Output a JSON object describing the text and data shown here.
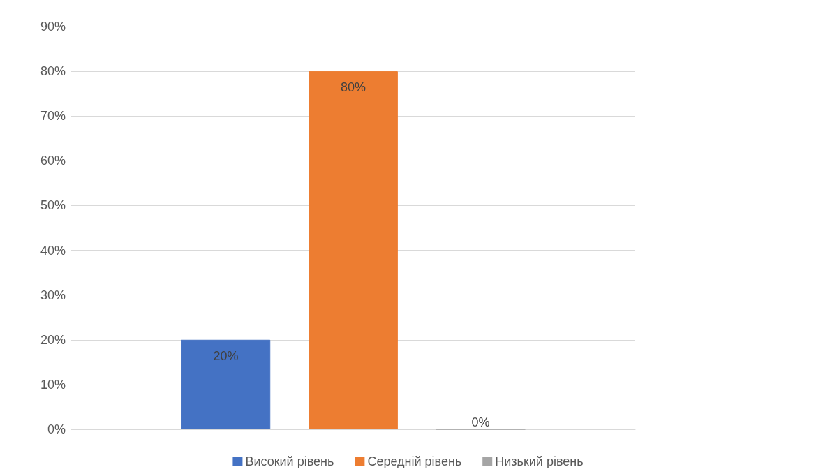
{
  "chart_data": {
    "type": "bar",
    "categories": [
      null
    ],
    "series": [
      {
        "name": "Високий рівень",
        "color": "#4472c4",
        "values": [
          20
        ],
        "value_labels": [
          "20%"
        ]
      },
      {
        "name": "Середній рівень",
        "color": "#ed7d31",
        "values": [
          80
        ],
        "value_labels": [
          "80%"
        ]
      },
      {
        "name": "Низький рівень",
        "color": "#a5a5a5",
        "values": [
          0
        ],
        "value_labels": [
          "0%"
        ]
      }
    ],
    "ylim": [
      0,
      90
    ],
    "yticks": [
      {
        "value": 0,
        "label": "0%"
      },
      {
        "value": 10,
        "label": "10%"
      },
      {
        "value": 20,
        "label": "20%"
      },
      {
        "value": 30,
        "label": "30%"
      },
      {
        "value": 40,
        "label": "40%"
      },
      {
        "value": 50,
        "label": "50%"
      },
      {
        "value": 60,
        "label": "60%"
      },
      {
        "value": 70,
        "label": "70%"
      },
      {
        "value": 80,
        "label": "80%"
      },
      {
        "value": 90,
        "label": "90%"
      }
    ],
    "grid": "y",
    "legend": "bottom"
  }
}
